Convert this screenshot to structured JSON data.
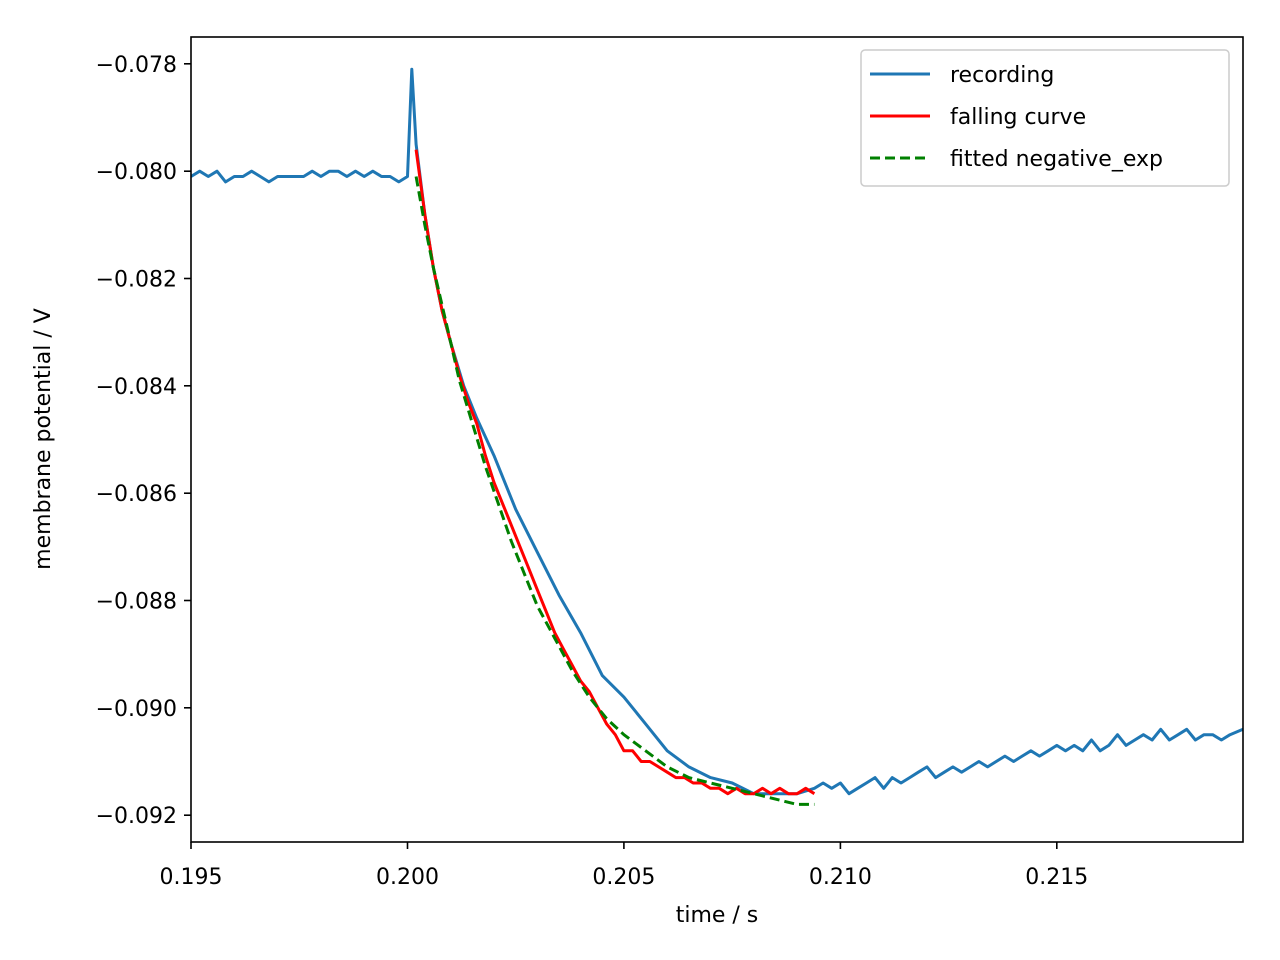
{
  "chart_data": {
    "type": "line",
    "title": "",
    "xlabel": "time / s",
    "ylabel": "membrane potential / V",
    "xlim": [
      0.195,
      0.2193
    ],
    "ylim": [
      -0.0925,
      -0.0775
    ],
    "xticks": [
      0.195,
      0.2,
      0.205,
      0.21,
      0.215
    ],
    "xtick_labels": [
      "0.195",
      "0.200",
      "0.205",
      "0.210",
      "0.215"
    ],
    "yticks": [
      -0.078,
      -0.08,
      -0.082,
      -0.084,
      -0.086,
      -0.088,
      -0.09,
      -0.092
    ],
    "ytick_labels": [
      "−0.078",
      "−0.080",
      "−0.082",
      "−0.084",
      "−0.086",
      "−0.088",
      "−0.090",
      "−0.092"
    ],
    "grid": false,
    "legend_position": "top-right",
    "series": [
      {
        "name": "recording",
        "color": "#1f77b4",
        "style": "solid",
        "x": [
          0.195,
          0.1952,
          0.1954,
          0.1956,
          0.1958,
          0.196,
          0.1962,
          0.1964,
          0.1966,
          0.1968,
          0.197,
          0.1972,
          0.1974,
          0.1976,
          0.1978,
          0.198,
          0.1982,
          0.1984,
          0.1986,
          0.1988,
          0.199,
          0.1992,
          0.1994,
          0.1996,
          0.1998,
          0.2,
          0.2001,
          0.2002,
          0.2004,
          0.2006,
          0.2008,
          0.201,
          0.2013,
          0.2016,
          0.202,
          0.2025,
          0.203,
          0.2035,
          0.204,
          0.2045,
          0.205,
          0.2055,
          0.206,
          0.2065,
          0.207,
          0.2075,
          0.208,
          0.2085,
          0.209,
          0.2094,
          0.2096,
          0.2098,
          0.21,
          0.2102,
          0.2104,
          0.2106,
          0.2108,
          0.211,
          0.2112,
          0.2114,
          0.2116,
          0.2118,
          0.212,
          0.2122,
          0.2124,
          0.2126,
          0.2128,
          0.213,
          0.2132,
          0.2134,
          0.2136,
          0.2138,
          0.214,
          0.2142,
          0.2144,
          0.2146,
          0.2148,
          0.215,
          0.2152,
          0.2154,
          0.2156,
          0.2158,
          0.216,
          0.2162,
          0.2164,
          0.2166,
          0.2168,
          0.217,
          0.2172,
          0.2174,
          0.2176,
          0.2178,
          0.218,
          0.2182,
          0.2184,
          0.2186,
          0.2188,
          0.219,
          0.2193
        ],
        "y": [
          -0.0801,
          -0.08,
          -0.0801,
          -0.08,
          -0.0802,
          -0.0801,
          -0.0801,
          -0.08,
          -0.0801,
          -0.0802,
          -0.0801,
          -0.0801,
          -0.0801,
          -0.0801,
          -0.08,
          -0.0801,
          -0.08,
          -0.08,
          -0.0801,
          -0.08,
          -0.0801,
          -0.08,
          -0.0801,
          -0.0801,
          -0.0802,
          -0.0801,
          -0.0781,
          -0.0795,
          -0.0808,
          -0.0818,
          -0.0826,
          -0.0832,
          -0.084,
          -0.0846,
          -0.0853,
          -0.0863,
          -0.0871,
          -0.0879,
          -0.0886,
          -0.0894,
          -0.0898,
          -0.0903,
          -0.0908,
          -0.0911,
          -0.0913,
          -0.0914,
          -0.0916,
          -0.0916,
          -0.0916,
          -0.0915,
          -0.0914,
          -0.0915,
          -0.0914,
          -0.0916,
          -0.0915,
          -0.0914,
          -0.0913,
          -0.0915,
          -0.0913,
          -0.0914,
          -0.0913,
          -0.0912,
          -0.0911,
          -0.0913,
          -0.0912,
          -0.0911,
          -0.0912,
          -0.0911,
          -0.091,
          -0.0911,
          -0.091,
          -0.0909,
          -0.091,
          -0.0909,
          -0.0908,
          -0.0909,
          -0.0908,
          -0.0907,
          -0.0908,
          -0.0907,
          -0.0908,
          -0.0906,
          -0.0908,
          -0.0907,
          -0.0905,
          -0.0907,
          -0.0906,
          -0.0905,
          -0.0906,
          -0.0904,
          -0.0906,
          -0.0905,
          -0.0904,
          -0.0906,
          -0.0905,
          -0.0905,
          -0.0906,
          -0.0905,
          -0.0904
        ]
      },
      {
        "name": "falling curve",
        "color": "#ff0000",
        "style": "solid",
        "x": [
          0.2002,
          0.2004,
          0.2006,
          0.2008,
          0.201,
          0.2012,
          0.2014,
          0.2016,
          0.2018,
          0.202,
          0.2022,
          0.2024,
          0.2026,
          0.2028,
          0.203,
          0.2032,
          0.2034,
          0.2036,
          0.2038,
          0.204,
          0.2042,
          0.2044,
          0.2046,
          0.2048,
          0.205,
          0.2052,
          0.2054,
          0.2056,
          0.2058,
          0.206,
          0.2062,
          0.2064,
          0.2066,
          0.2068,
          0.207,
          0.2072,
          0.2074,
          0.2076,
          0.2078,
          0.208,
          0.2082,
          0.2084,
          0.2086,
          0.2088,
          0.209,
          0.2092,
          0.2094
        ],
        "y": [
          -0.0796,
          -0.0808,
          -0.0818,
          -0.0826,
          -0.0832,
          -0.0838,
          -0.0843,
          -0.0847,
          -0.0853,
          -0.0858,
          -0.0862,
          -0.0866,
          -0.087,
          -0.0874,
          -0.0878,
          -0.0882,
          -0.0886,
          -0.0889,
          -0.0892,
          -0.0895,
          -0.0897,
          -0.09,
          -0.0903,
          -0.0905,
          -0.0908,
          -0.0908,
          -0.091,
          -0.091,
          -0.0911,
          -0.0912,
          -0.0913,
          -0.0913,
          -0.0914,
          -0.0914,
          -0.0915,
          -0.0915,
          -0.0916,
          -0.0915,
          -0.0916,
          -0.0916,
          -0.0915,
          -0.0916,
          -0.0915,
          -0.0916,
          -0.0916,
          -0.0915,
          -0.0916
        ]
      },
      {
        "name": "fitted negative_exp",
        "color": "#008000",
        "style": "dashed",
        "x": [
          0.2002,
          0.2004,
          0.2006,
          0.2008,
          0.201,
          0.2012,
          0.2015,
          0.2018,
          0.2021,
          0.2024,
          0.2027,
          0.203,
          0.2034,
          0.2038,
          0.2042,
          0.2046,
          0.205,
          0.2055,
          0.206,
          0.2065,
          0.207,
          0.2075,
          0.208,
          0.2085,
          0.209,
          0.2094
        ],
        "y": [
          -0.0801,
          -0.081,
          -0.0818,
          -0.0825,
          -0.0832,
          -0.0839,
          -0.0847,
          -0.0855,
          -0.0862,
          -0.0869,
          -0.0875,
          -0.0881,
          -0.0887,
          -0.0893,
          -0.0898,
          -0.0902,
          -0.0905,
          -0.0908,
          -0.0911,
          -0.0913,
          -0.0914,
          -0.0915,
          -0.0916,
          -0.0917,
          -0.0918,
          -0.0918
        ]
      }
    ]
  }
}
